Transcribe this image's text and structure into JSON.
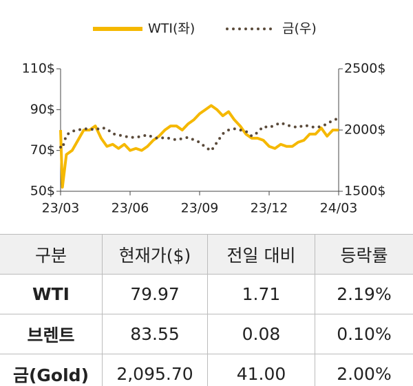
{
  "chart_data": {
    "type": "line",
    "legend": "top",
    "x": [
      0,
      0.08,
      0.25,
      0.5,
      0.75,
      1,
      1.25,
      1.5,
      1.75,
      2,
      2.25,
      2.5,
      2.75,
      3,
      3.25,
      3.5,
      3.75,
      4,
      4.25,
      4.5,
      4.75,
      5,
      5.25,
      5.5,
      5.75,
      6,
      6.25,
      6.5,
      6.75,
      7,
      7.25,
      7.5,
      7.75,
      8,
      8.25,
      8.5,
      8.75,
      9,
      9.25,
      9.5,
      9.75,
      10,
      10.25,
      10.5,
      10.75,
      11,
      11.25,
      11.5,
      11.75,
      12
    ],
    "xlim": [
      0,
      12
    ],
    "xticks": [
      {
        "value": 0,
        "label": "23/03"
      },
      {
        "value": 3,
        "label": "23/06"
      },
      {
        "value": 6,
        "label": "23/09"
      },
      {
        "value": 9,
        "label": "23/12"
      },
      {
        "value": 12,
        "label": "24/03"
      }
    ],
    "ylim": [
      50,
      110
    ],
    "yticks": [
      {
        "value": 50,
        "label": "50$"
      },
      {
        "value": 70,
        "label": "70$"
      },
      {
        "value": 90,
        "label": "90$"
      },
      {
        "value": 110,
        "label": "110$"
      }
    ],
    "y2lim": [
      1500,
      2500
    ],
    "y2ticks": [
      {
        "value": 1500,
        "label": "1500$"
      },
      {
        "value": 2000,
        "label": "2000$"
      },
      {
        "value": 2500,
        "label": "2500$"
      }
    ],
    "series": [
      {
        "name": "WTI(좌)",
        "color": "#f5b800",
        "style": "solid",
        "values": [
          80,
          52,
          68,
          70,
          75,
          80,
          80,
          82,
          76,
          72,
          73,
          71,
          73,
          70,
          71,
          70,
          72,
          75,
          77,
          80,
          82,
          82,
          80,
          83,
          85,
          88,
          90,
          92,
          90,
          87,
          89,
          85,
          82,
          78,
          76,
          76,
          75,
          72,
          71,
          73,
          72,
          72,
          74,
          75,
          78,
          78,
          81,
          77,
          80,
          80
        ]
      },
      {
        "name": "금(우)",
        "color": "#5a4a3a",
        "style": "dotted",
        "axis": "y2",
        "values": [
          1860,
          1850,
          1960,
          1990,
          2000,
          2010,
          2010,
          2000,
          2020,
          2010,
          1970,
          1960,
          1950,
          1940,
          1940,
          1950,
          1960,
          1940,
          1930,
          1940,
          1930,
          1920,
          1930,
          1940,
          1920,
          1900,
          1860,
          1830,
          1900,
          1970,
          2000,
          2010,
          2000,
          1990,
          1950,
          1980,
          2030,
          2020,
          2040,
          2060,
          2040,
          2030,
          2020,
          2040,
          2030,
          2020,
          2030,
          2050,
          2080,
          2095
        ]
      }
    ]
  },
  "table": {
    "header": [
      "구분",
      "현재가($)",
      "전일 대비",
      "등락률"
    ],
    "rows": [
      [
        "WTI",
        "79.97",
        "1.71",
        "2.19%"
      ],
      [
        "브렌트",
        "83.55",
        "0.08",
        "0.10%"
      ],
      [
        "금(Gold)",
        "2,095.70",
        "41.00",
        "2.00%"
      ]
    ]
  }
}
